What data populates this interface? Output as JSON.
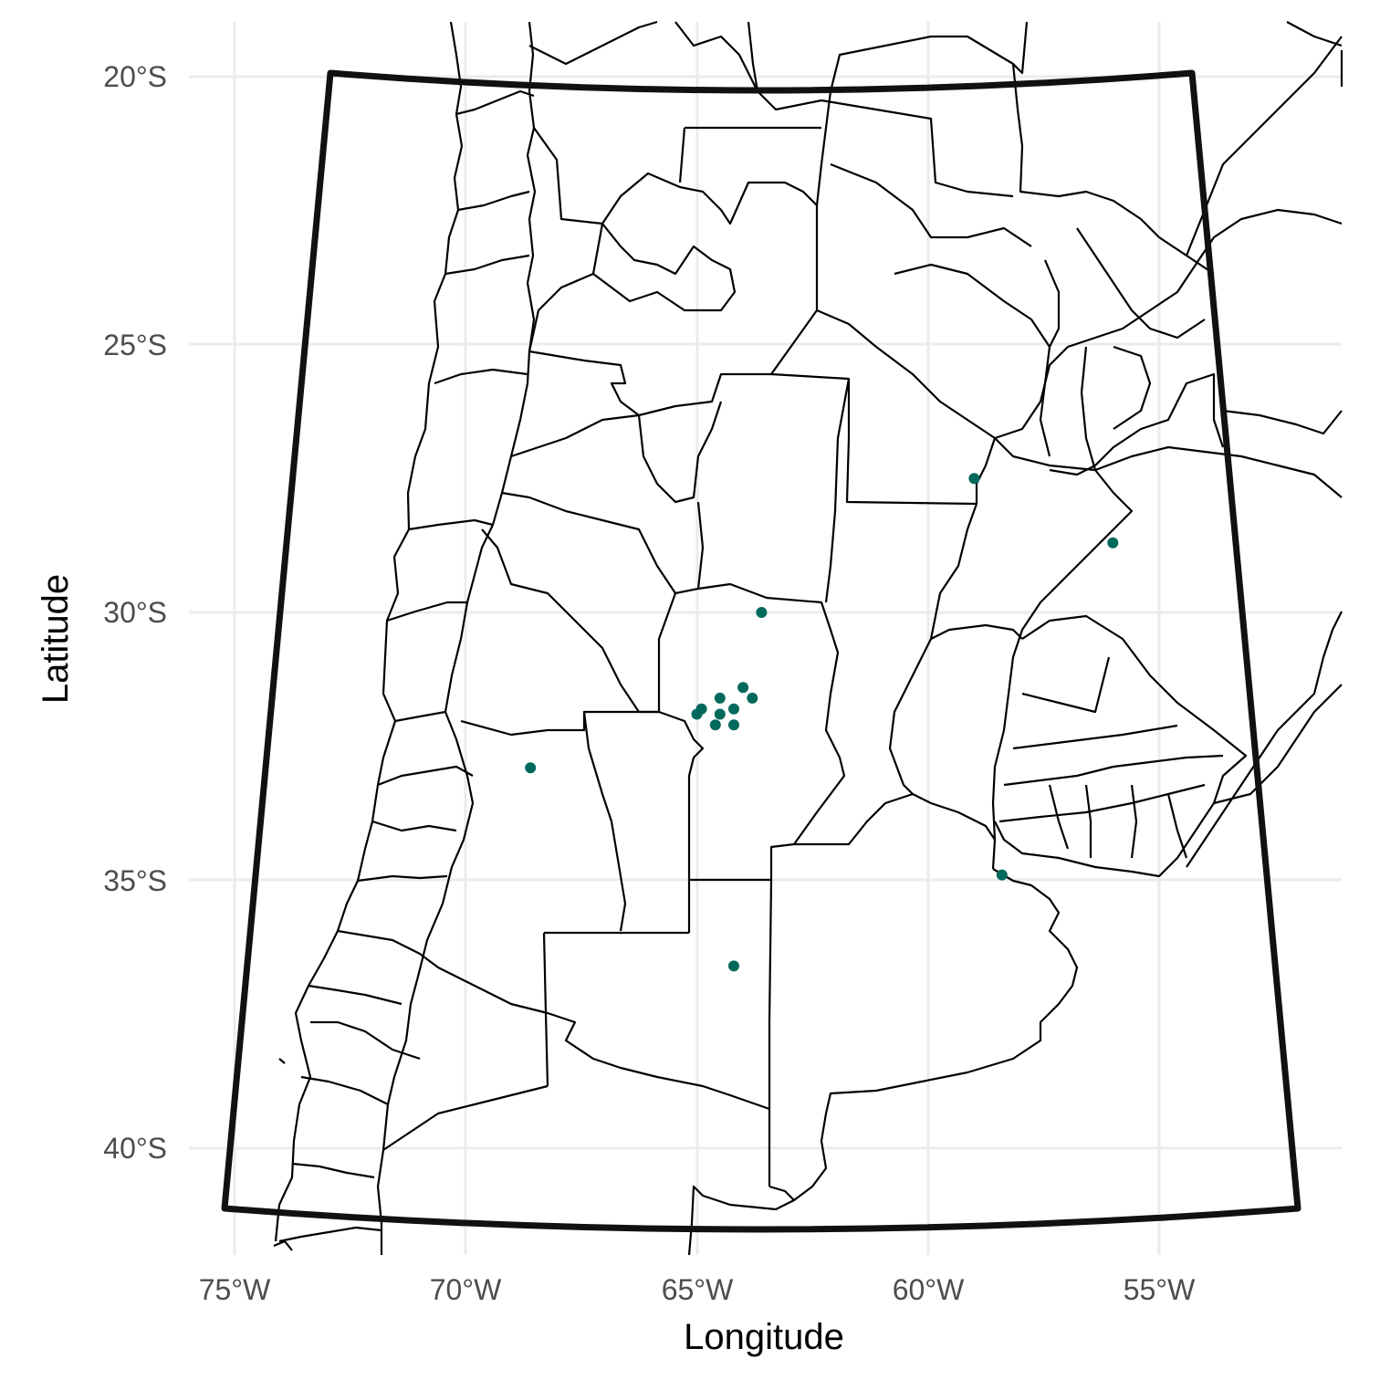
{
  "map": {
    "type": "map",
    "x_label": "Longitude",
    "y_label": "Latitude",
    "lon_ticks": [
      {
        "value": -75,
        "label": "75°W"
      },
      {
        "value": -70,
        "label": "70°W"
      },
      {
        "value": -65,
        "label": "65°W"
      },
      {
        "value": -60,
        "label": "60°W"
      },
      {
        "value": -55,
        "label": "55°W"
      }
    ],
    "lat_ticks": [
      {
        "value": -20,
        "label": "20°S"
      },
      {
        "value": -25,
        "label": "25°S"
      },
      {
        "value": -30,
        "label": "30°S"
      },
      {
        "value": -35,
        "label": "35°S"
      },
      {
        "value": -40,
        "label": "40°S"
      }
    ],
    "point_color": "#00695c",
    "frame_color": "#111111",
    "grid": true
  },
  "chart_data": {
    "type": "scatter",
    "xlabel": "Longitude",
    "ylabel": "Latitude",
    "xlim": [
      -75.3,
      -51.3
    ],
    "ylim": [
      -42.0,
      -19.0
    ],
    "points": [
      {
        "lon": -59.0,
        "lat": -27.5
      },
      {
        "lon": -56.0,
        "lat": -28.7
      },
      {
        "lon": -63.6,
        "lat": -30.0
      },
      {
        "lon": -64.0,
        "lat": -31.4
      },
      {
        "lon": -63.8,
        "lat": -31.6
      },
      {
        "lon": -64.5,
        "lat": -31.6
      },
      {
        "lon": -64.2,
        "lat": -31.8
      },
      {
        "lon": -64.5,
        "lat": -31.9
      },
      {
        "lon": -64.9,
        "lat": -31.8
      },
      {
        "lon": -65.0,
        "lat": -31.9
      },
      {
        "lon": -64.6,
        "lat": -32.1
      },
      {
        "lon": -64.2,
        "lat": -32.1
      },
      {
        "lon": -68.6,
        "lat": -32.9
      },
      {
        "lon": -58.4,
        "lat": -34.9
      },
      {
        "lon": -64.2,
        "lat": -36.6
      }
    ]
  }
}
